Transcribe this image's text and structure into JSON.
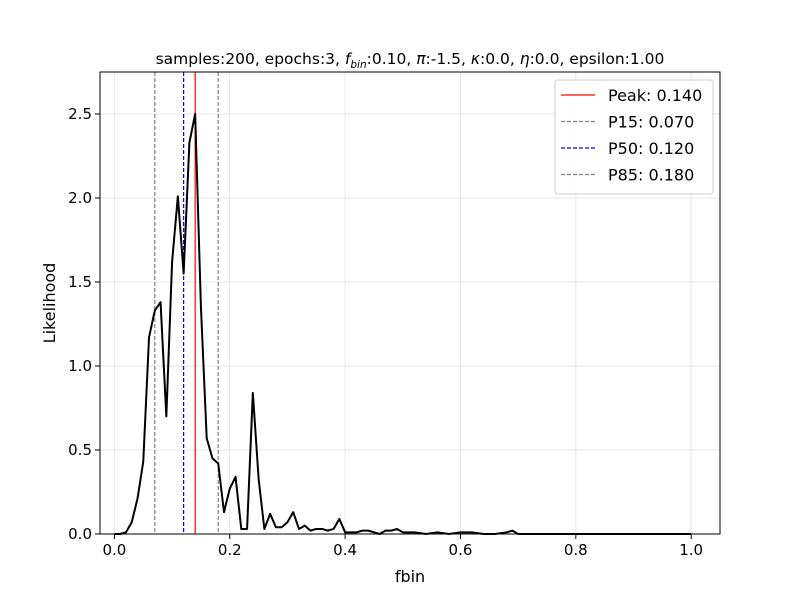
{
  "chart_data": {
    "type": "line",
    "title": {
      "prefix": "samples:200, epochs:3, ",
      "f_symbol": "f",
      "f_subscript": "bin",
      "f_value": ":0.10, ",
      "pi_symbol": "π",
      "pi_value": ":-1.5, ",
      "kappa_symbol": "κ",
      "kappa_value": ":0.0, ",
      "eta_symbol": "η",
      "eta_value": ":0.0, epsilon:1.00"
    },
    "xlabel": "fbin",
    "ylabel": "Likelihood",
    "xlim": [
      -0.025,
      1.05
    ],
    "ylim": [
      0,
      2.75
    ],
    "xticks": [
      0.0,
      0.2,
      0.4,
      0.6,
      0.8,
      1.0
    ],
    "xtick_labels": [
      "0.0",
      "0.2",
      "0.4",
      "0.6",
      "0.8",
      "1.0"
    ],
    "yticks": [
      0.0,
      0.5,
      1.0,
      1.5,
      2.0,
      2.5
    ],
    "ytick_labels": [
      "0.0",
      "0.5",
      "1.0",
      "1.5",
      "2.0",
      "2.5"
    ],
    "grid": true,
    "legend_position": "top-right",
    "series": [
      {
        "color": "#000000",
        "x": [
          0.0,
          0.01,
          0.02,
          0.03,
          0.04,
          0.05,
          0.06,
          0.07,
          0.08,
          0.09,
          0.1,
          0.11,
          0.12,
          0.13,
          0.14,
          0.15,
          0.16,
          0.17,
          0.18,
          0.19,
          0.2,
          0.21,
          0.22,
          0.23,
          0.24,
          0.25,
          0.26,
          0.27,
          0.28,
          0.29,
          0.3,
          0.31,
          0.32,
          0.33,
          0.34,
          0.35,
          0.36,
          0.37,
          0.38,
          0.39,
          0.4,
          0.41,
          0.42,
          0.43,
          0.44,
          0.45,
          0.46,
          0.47,
          0.48,
          0.49,
          0.5,
          0.52,
          0.54,
          0.56,
          0.58,
          0.6,
          0.62,
          0.64,
          0.66,
          0.68,
          0.69,
          0.7,
          0.72,
          0.75,
          0.8,
          0.85,
          0.9,
          0.95,
          1.0
        ],
        "y": [
          0.0,
          0.0,
          0.01,
          0.07,
          0.21,
          0.43,
          1.17,
          1.33,
          1.38,
          0.7,
          1.62,
          2.01,
          1.55,
          2.33,
          2.5,
          1.35,
          0.57,
          0.45,
          0.42,
          0.13,
          0.27,
          0.34,
          0.03,
          0.03,
          0.84,
          0.33,
          0.03,
          0.12,
          0.04,
          0.04,
          0.07,
          0.13,
          0.03,
          0.05,
          0.02,
          0.03,
          0.03,
          0.02,
          0.03,
          0.09,
          0.01,
          0.01,
          0.01,
          0.02,
          0.02,
          0.01,
          0.0,
          0.02,
          0.02,
          0.03,
          0.01,
          0.01,
          0.0,
          0.01,
          0.0,
          0.01,
          0.01,
          0.0,
          0.0,
          0.01,
          0.02,
          0.0,
          0.0,
          0.0,
          0.0,
          0.0,
          0.0,
          0.0,
          0.0
        ]
      }
    ],
    "vlines": [
      {
        "x": 0.14,
        "color": "#ff0000",
        "dashed": false,
        "label": "Peak: 0.140"
      },
      {
        "x": 0.07,
        "color": "#808080",
        "dashed": true,
        "label": "P15: 0.070"
      },
      {
        "x": 0.12,
        "color": "#0000ff",
        "dashed": true,
        "label": "P50: 0.120"
      },
      {
        "x": 0.18,
        "color": "#808080",
        "dashed": true,
        "label": "P85: 0.180"
      }
    ]
  }
}
